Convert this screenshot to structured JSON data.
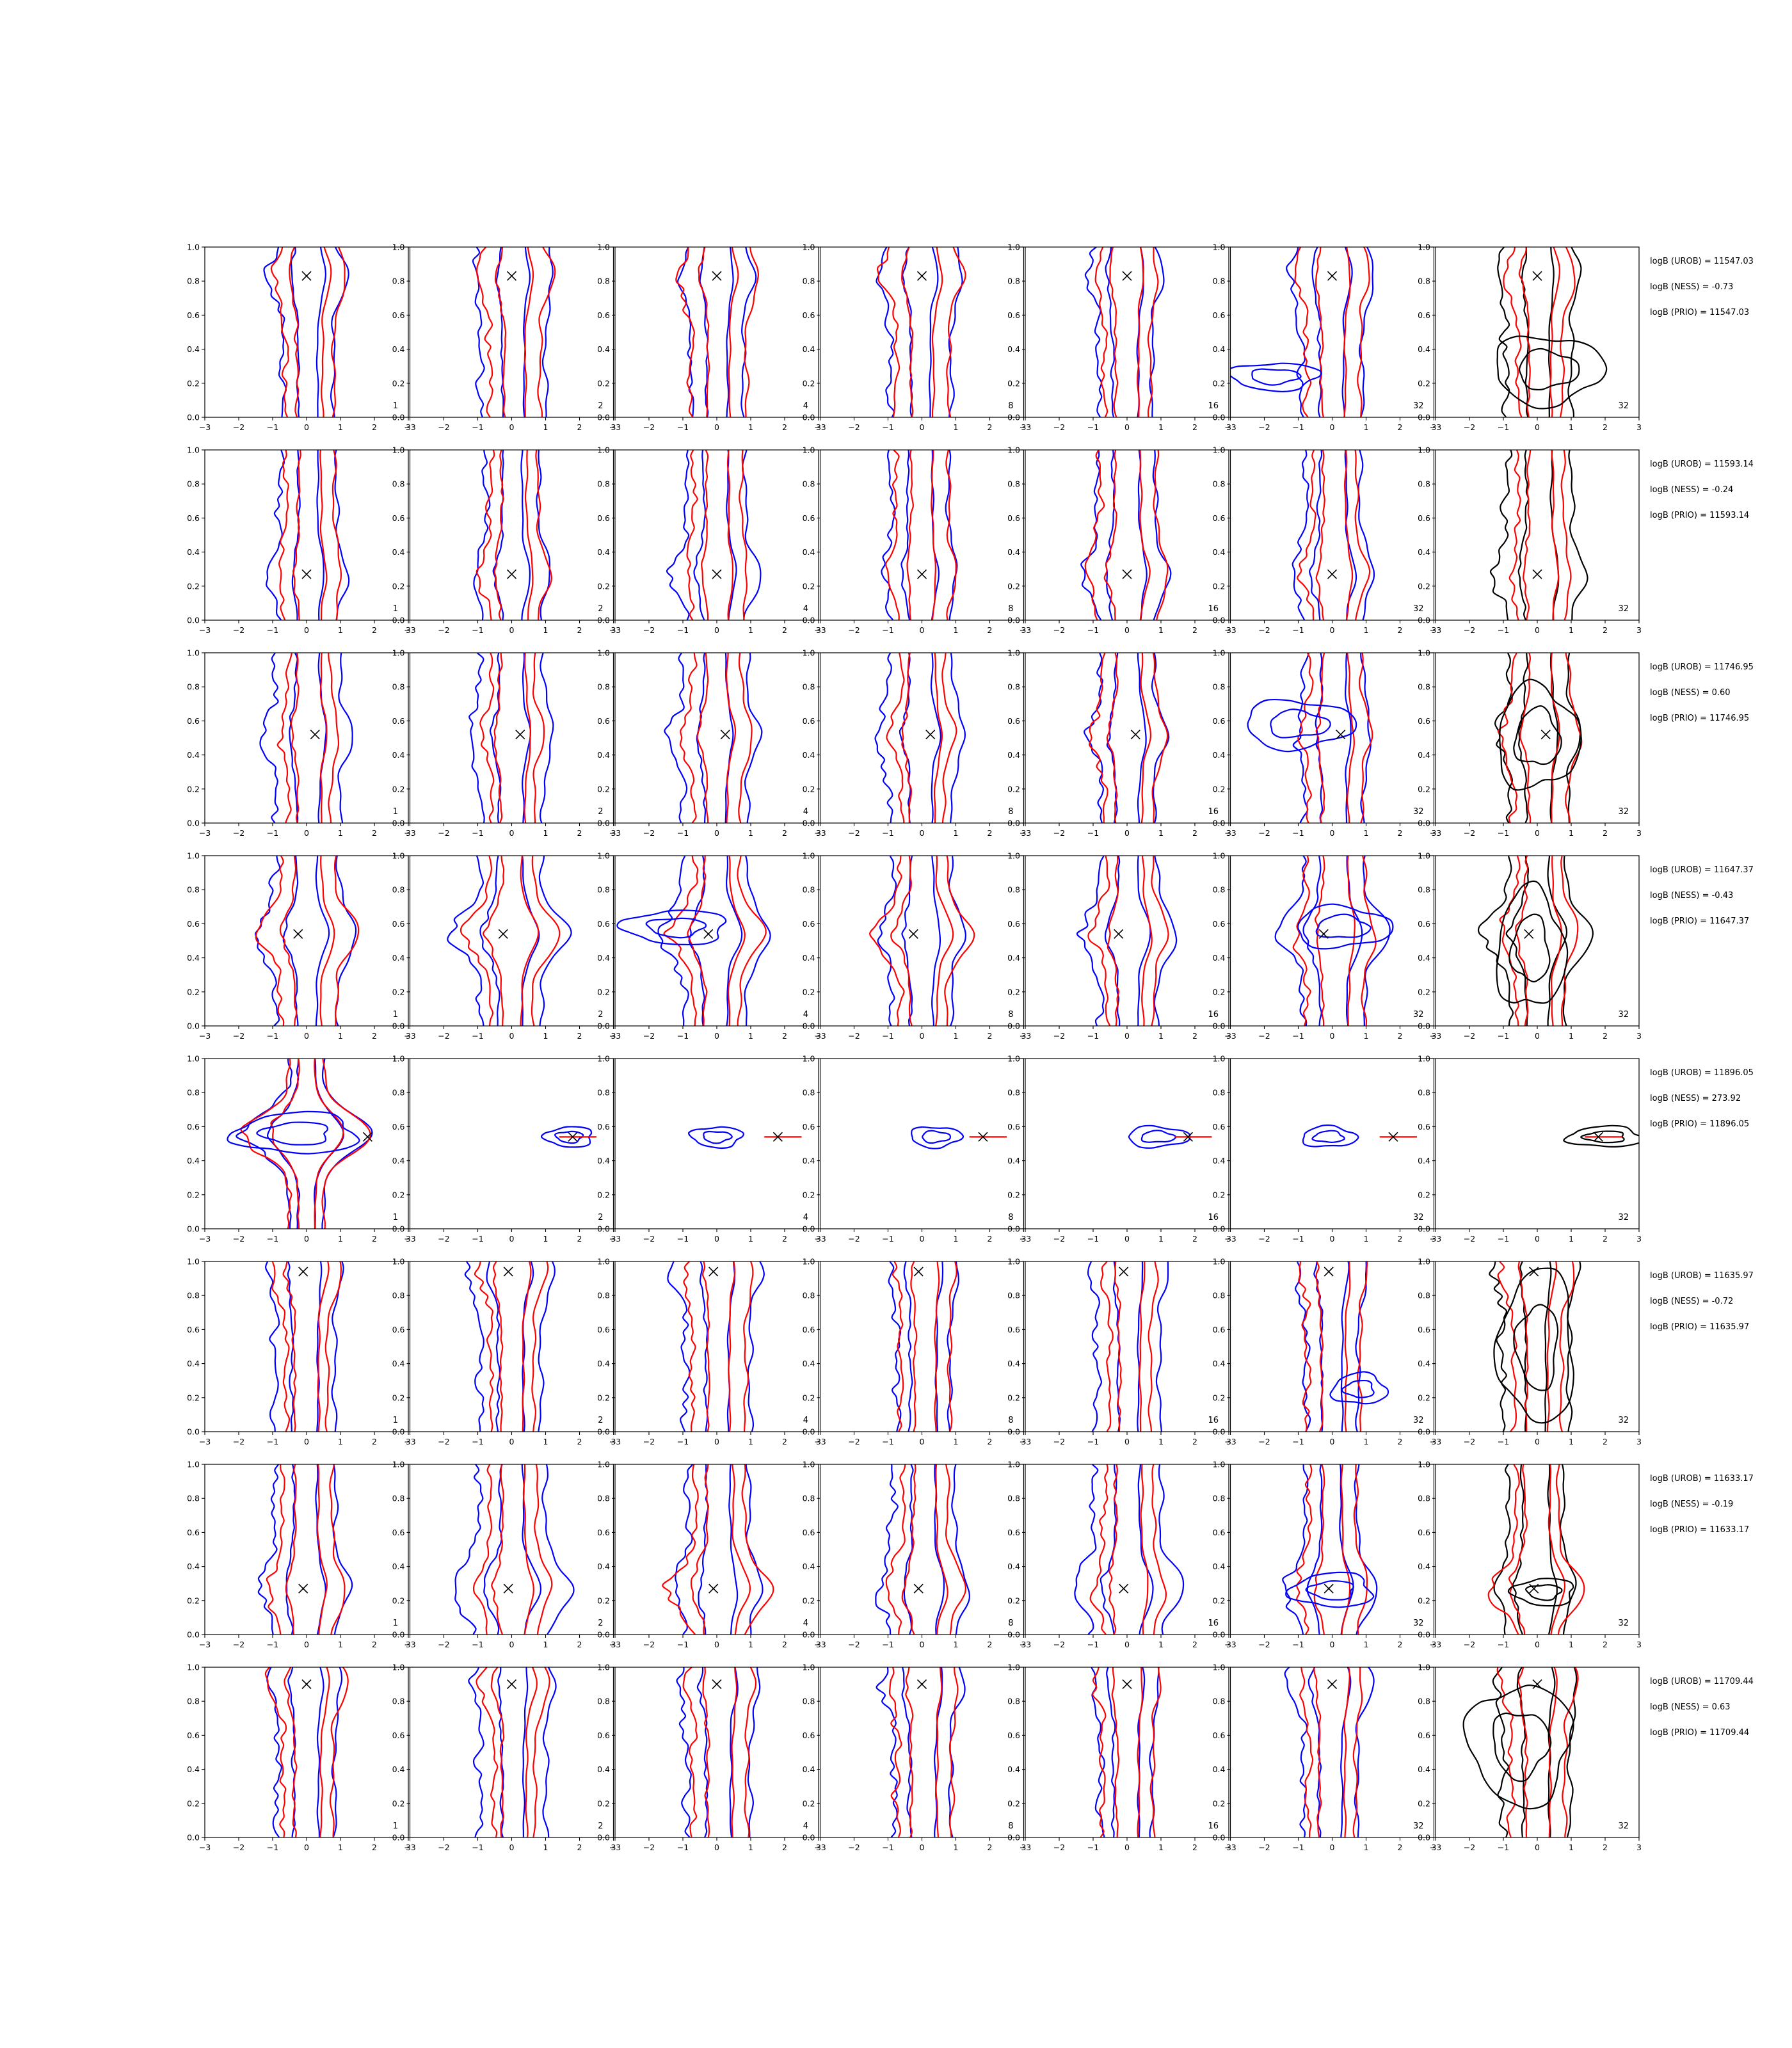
{
  "chart_data": {
    "type": "contour",
    "grid": {
      "rows": 8,
      "cols": 7
    },
    "xlim": [
      -3,
      3
    ],
    "ylim": [
      0,
      1
    ],
    "xticks": [
      -3,
      -2,
      -1,
      0,
      1,
      2,
      3
    ],
    "yticks": [
      0.0,
      0.2,
      0.4,
      0.6,
      0.8,
      1.0
    ],
    "xtick_labels": [
      "−3",
      "−2",
      "−1",
      "0",
      "1",
      "2",
      "3"
    ],
    "ytick_labels": [
      "0.0",
      "0.2",
      "0.4",
      "0.6",
      "0.8",
      "1.0"
    ],
    "column_labels": [
      "1",
      "2",
      "4",
      "8",
      "16",
      "32",
      "32"
    ],
    "colors": {
      "blue": "#0000ff",
      "red": "#ff0000",
      "black": "#000000"
    },
    "truth_markers": [
      {
        "x": 0.0,
        "y": 0.83
      },
      {
        "x": 0.0,
        "y": 0.27
      },
      {
        "x": 0.25,
        "y": 0.52
      },
      {
        "x": -0.25,
        "y": 0.54
      },
      {
        "x": 1.8,
        "y": 0.54
      },
      {
        "x": -0.1,
        "y": 0.94
      },
      {
        "x": -0.1,
        "y": 0.27
      },
      {
        "x": 0.0,
        "y": 0.9
      }
    ],
    "bayes_factors": [
      [
        "logB (UROB) = 11547.03",
        "logB (NESS) = -0.73",
        "logB (PRIO) = 11547.03"
      ],
      [
        "logB (UROB) = 11593.14",
        "logB (NESS) = -0.24",
        "logB (PRIO) = 11593.14"
      ],
      [
        "logB (UROB) = 11746.95",
        "logB (NESS) = 0.60",
        "logB (PRIO) = 11746.95"
      ],
      [
        "logB (UROB) = 11647.37",
        "logB (NESS) = -0.43",
        "logB (PRIO) = 11647.37"
      ],
      [
        "logB (UROB) = 11896.05",
        "logB (NESS) = 273.92",
        "logB (PRIO) = 11896.05"
      ],
      [
        "logB (UROB) = 11635.97",
        "logB (NESS) = -0.72",
        "logB (PRIO) = 11635.97"
      ],
      [
        "logB (UROB) = 11633.17",
        "logB (NESS) = -0.19",
        "logB (PRIO) = 11633.17"
      ],
      [
        "logB (UROB) = 11709.44",
        "logB (NESS) = 0.63",
        "logB (PRIO) = 11709.44"
      ]
    ],
    "contour_shapes": {
      "row_types": [
        "vert",
        "vert",
        "vert",
        "mixed",
        "blob",
        "vert",
        "mixed",
        "vert"
      ],
      "horizontal_blobs": [
        {
          "row": 1,
          "col": 6,
          "color": "blue",
          "cx": -1.7,
          "cy": 0.24,
          "rx": 1.3,
          "ry": 0.08
        },
        {
          "row": 1,
          "col": 7,
          "color": "black",
          "cx": 0.3,
          "cy": 0.28,
          "rx": 1.6,
          "ry": 0.2
        },
        {
          "row": 3,
          "col": 6,
          "color": "blue",
          "cx": -1.0,
          "cy": 0.58,
          "rx": 1.6,
          "ry": 0.14
        },
        {
          "row": 3,
          "col": 7,
          "color": "black",
          "cx": 0.0,
          "cy": 0.5,
          "rx": 1.2,
          "ry": 0.3
        },
        {
          "row": 4,
          "col": 3,
          "color": "blue",
          "cx": -1.2,
          "cy": 0.58,
          "rx": 1.5,
          "ry": 0.1
        },
        {
          "row": 4,
          "col": 6,
          "color": "blue",
          "cx": 0.3,
          "cy": 0.58,
          "rx": 1.4,
          "ry": 0.12
        },
        {
          "row": 4,
          "col": 7,
          "color": "black",
          "cx": -0.2,
          "cy": 0.45,
          "rx": 1.0,
          "ry": 0.35
        },
        {
          "row": 5,
          "col": 1,
          "color": "blue",
          "cx": -0.3,
          "cy": 0.56,
          "rx": 1.8,
          "ry": 0.12
        },
        {
          "row": 5,
          "col": 2,
          "color": "blue",
          "cx": 1.7,
          "cy": 0.54,
          "rx": 0.7,
          "ry": 0.06
        },
        {
          "row": 5,
          "col": 3,
          "color": "blue",
          "cx": 0.0,
          "cy": 0.54,
          "rx": 0.75,
          "ry": 0.06
        },
        {
          "row": 5,
          "col": 4,
          "color": "blue",
          "cx": 0.4,
          "cy": 0.54,
          "rx": 0.75,
          "ry": 0.06
        },
        {
          "row": 5,
          "col": 5,
          "color": "blue",
          "cx": 0.9,
          "cy": 0.54,
          "rx": 0.9,
          "ry": 0.06
        },
        {
          "row": 5,
          "col": 6,
          "color": "blue",
          "cx": -0.1,
          "cy": 0.54,
          "rx": 0.8,
          "ry": 0.06
        },
        {
          "row": 5,
          "col": 7,
          "color": "black",
          "cx": 2.0,
          "cy": 0.54,
          "rx": 1.1,
          "ry": 0.06
        },
        {
          "row": 6,
          "col": 6,
          "color": "blue",
          "cx": 0.8,
          "cy": 0.25,
          "rx": 0.8,
          "ry": 0.09
        },
        {
          "row": 6,
          "col": 7,
          "color": "black",
          "cx": 0.0,
          "cy": 0.5,
          "rx": 1.1,
          "ry": 0.45
        },
        {
          "row": 7,
          "col": 6,
          "color": "blue",
          "cx": 0.0,
          "cy": 0.26,
          "rx": 1.2,
          "ry": 0.1
        },
        {
          "row": 7,
          "col": 7,
          "color": "black",
          "cx": 0.2,
          "cy": 0.25,
          "rx": 0.9,
          "ry": 0.08
        },
        {
          "row": 8,
          "col": 7,
          "color": "black",
          "cx": -0.5,
          "cy": 0.55,
          "rx": 1.5,
          "ry": 0.35
        }
      ]
    }
  }
}
